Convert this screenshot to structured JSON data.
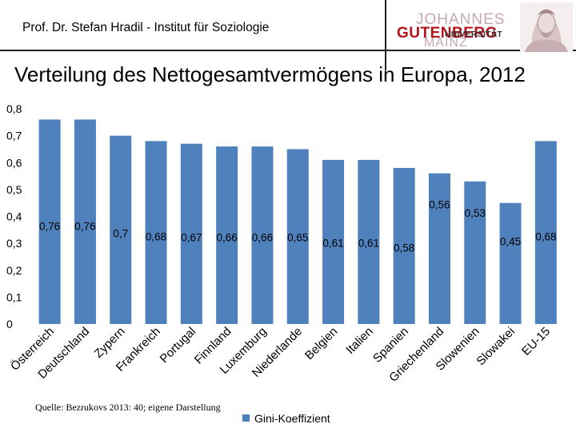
{
  "header": {
    "author": "Prof. Dr. Stefan Hradil - Institut für Soziologie",
    "logo_line1": "JOHANNES",
    "logo_line2": "GUTENBERG",
    "logo_line3": "UNIVERSITÄT",
    "logo_line4": "MAINZ"
  },
  "slide": {
    "title": "Verteilung des Nettogesamtvermögens in Europa, 2012",
    "source": "Quelle: Bezrukovs 2013: 40; eigene Darstellung"
  },
  "colors": {
    "bar": "#4f81bd",
    "logo_red": "#b5121b"
  },
  "chart_data": {
    "type": "bar",
    "title": "",
    "xlabel": "",
    "ylabel": "",
    "ylim": [
      0,
      0.8
    ],
    "yticks": [
      "0",
      "0,1",
      "0,2",
      "0,3",
      "0,4",
      "0,5",
      "0,6",
      "0,7",
      "0,8"
    ],
    "grid": false,
    "legend_position": "bottom",
    "categories": [
      "Österreich",
      "Deutschland",
      "Zypern",
      "Frankreich",
      "Portugal",
      "Finnland",
      "Luxemburg",
      "Niederlande",
      "Belgien",
      "Italien",
      "Spanien",
      "Griechenland",
      "Slowenien",
      "Slowakei",
      "EU-15"
    ],
    "series": [
      {
        "name": "Gini-Koeffizient",
        "values": [
          0.76,
          0.76,
          0.7,
          0.68,
          0.67,
          0.66,
          0.66,
          0.65,
          0.61,
          0.61,
          0.58,
          0.56,
          0.53,
          0.45,
          0.68
        ],
        "labels": [
          "0,76",
          "0,76",
          "0,7",
          "0,68",
          "0,67",
          "0,66",
          "0,66",
          "0,65",
          "0,61",
          "0,61",
          "0,58",
          "0,56",
          "0,53",
          "0,45",
          "0,68"
        ]
      }
    ]
  }
}
